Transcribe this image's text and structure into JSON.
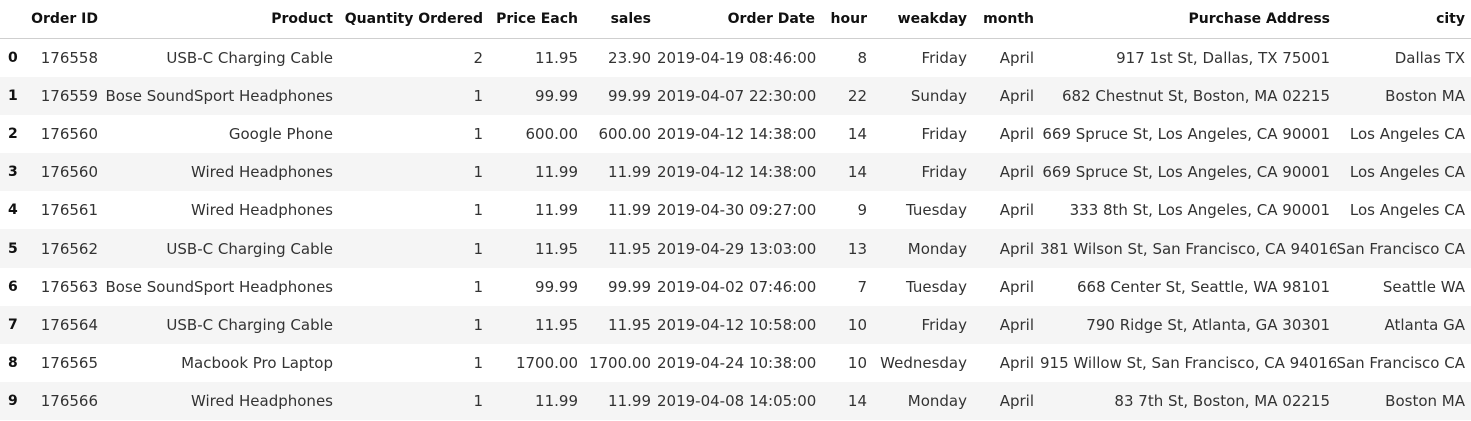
{
  "table": {
    "columns": [
      "",
      "Order ID",
      "Product",
      "Quantity Ordered",
      "Price Each",
      "sales",
      "Order Date",
      "hour",
      "weakday",
      "month",
      "Purchase Address",
      "city"
    ],
    "rows": [
      {
        "index": "0",
        "cells": [
          "176558",
          "USB-C Charging Cable",
          "2",
          "11.95",
          "23.90",
          "2019-04-19 08:46:00",
          "8",
          "Friday",
          "April",
          "917 1st St, Dallas, TX 75001",
          "Dallas TX"
        ]
      },
      {
        "index": "1",
        "cells": [
          "176559",
          "Bose SoundSport Headphones",
          "1",
          "99.99",
          "99.99",
          "2019-04-07 22:30:00",
          "22",
          "Sunday",
          "April",
          "682 Chestnut St, Boston, MA 02215",
          "Boston MA"
        ]
      },
      {
        "index": "2",
        "cells": [
          "176560",
          "Google Phone",
          "1",
          "600.00",
          "600.00",
          "2019-04-12 14:38:00",
          "14",
          "Friday",
          "April",
          "669 Spruce St, Los Angeles, CA 90001",
          "Los Angeles CA"
        ]
      },
      {
        "index": "3",
        "cells": [
          "176560",
          "Wired Headphones",
          "1",
          "11.99",
          "11.99",
          "2019-04-12 14:38:00",
          "14",
          "Friday",
          "April",
          "669 Spruce St, Los Angeles, CA 90001",
          "Los Angeles CA"
        ]
      },
      {
        "index": "4",
        "cells": [
          "176561",
          "Wired Headphones",
          "1",
          "11.99",
          "11.99",
          "2019-04-30 09:27:00",
          "9",
          "Tuesday",
          "April",
          "333 8th St, Los Angeles, CA 90001",
          "Los Angeles CA"
        ]
      },
      {
        "index": "5",
        "cells": [
          "176562",
          "USB-C Charging Cable",
          "1",
          "11.95",
          "11.95",
          "2019-04-29 13:03:00",
          "13",
          "Monday",
          "April",
          "381 Wilson St, San Francisco, CA 94016",
          "San Francisco CA"
        ]
      },
      {
        "index": "6",
        "cells": [
          "176563",
          "Bose SoundSport Headphones",
          "1",
          "99.99",
          "99.99",
          "2019-04-02 07:46:00",
          "7",
          "Tuesday",
          "April",
          "668 Center St, Seattle, WA 98101",
          "Seattle WA"
        ]
      },
      {
        "index": "7",
        "cells": [
          "176564",
          "USB-C Charging Cable",
          "1",
          "11.95",
          "11.95",
          "2019-04-12 10:58:00",
          "10",
          "Friday",
          "April",
          "790 Ridge St, Atlanta, GA 30301",
          "Atlanta GA"
        ]
      },
      {
        "index": "8",
        "cells": [
          "176565",
          "Macbook Pro Laptop",
          "1",
          "1700.00",
          "1700.00",
          "2019-04-24 10:38:00",
          "10",
          "Wednesday",
          "April",
          "915 Willow St, San Francisco, CA 94016",
          "San Francisco CA"
        ]
      },
      {
        "index": "9",
        "cells": [
          "176566",
          "Wired Headphones",
          "1",
          "11.99",
          "11.99",
          "2019-04-08 14:05:00",
          "14",
          "Monday",
          "April",
          "83 7th St, Boston, MA 02215",
          "Boston MA"
        ]
      }
    ]
  }
}
